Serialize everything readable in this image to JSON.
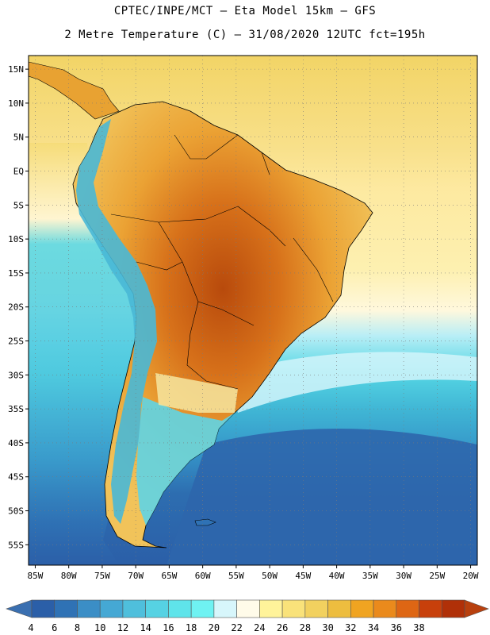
{
  "header": {
    "line1": "CPTEC/INPE/MCT –  Eta Model 15km – GFS",
    "line2": "2 Metre Temperature (C) – 31/08/2020 12UTC fct=195h"
  },
  "map": {
    "region": "South America",
    "variable": "2 Metre Temperature",
    "units": "C",
    "lon_range": [
      -86,
      -19
    ],
    "lat_range": [
      -58,
      17
    ],
    "lat_ticks": [
      {
        "value": 15,
        "label": "15N"
      },
      {
        "value": 10,
        "label": "10N"
      },
      {
        "value": 5,
        "label": "5N"
      },
      {
        "value": 0,
        "label": "EQ"
      },
      {
        "value": -5,
        "label": "5S"
      },
      {
        "value": -10,
        "label": "10S"
      },
      {
        "value": -15,
        "label": "15S"
      },
      {
        "value": -20,
        "label": "20S"
      },
      {
        "value": -25,
        "label": "25S"
      },
      {
        "value": -30,
        "label": "30S"
      },
      {
        "value": -35,
        "label": "35S"
      },
      {
        "value": -40,
        "label": "40S"
      },
      {
        "value": -45,
        "label": "45S"
      },
      {
        "value": -50,
        "label": "50S"
      },
      {
        "value": -55,
        "label": "55S"
      }
    ],
    "lon_ticks": [
      {
        "value": -85,
        "label": "85W"
      },
      {
        "value": -80,
        "label": "80W"
      },
      {
        "value": -75,
        "label": "75W"
      },
      {
        "value": -70,
        "label": "70W"
      },
      {
        "value": -65,
        "label": "65W"
      },
      {
        "value": -60,
        "label": "60W"
      },
      {
        "value": -55,
        "label": "55W"
      },
      {
        "value": -50,
        "label": "50W"
      },
      {
        "value": -45,
        "label": "45W"
      },
      {
        "value": -40,
        "label": "40W"
      },
      {
        "value": -35,
        "label": "35W"
      },
      {
        "value": -30,
        "label": "30W"
      },
      {
        "value": -25,
        "label": "25W"
      },
      {
        "value": -20,
        "label": "20W"
      }
    ]
  },
  "colorbar": {
    "labels": [
      "4",
      "6",
      "8",
      "10",
      "12",
      "14",
      "16",
      "18",
      "20",
      "22",
      "24",
      "26",
      "28",
      "30",
      "32",
      "34",
      "36",
      "38"
    ],
    "colors": [
      "#2b5fa8",
      "#2f72b5",
      "#3b8ec6",
      "#45a8d4",
      "#4fbfdc",
      "#56d2e3",
      "#5fe4ea",
      "#6ff2f2",
      "#d7f6fb",
      "#fffbe9",
      "#fff39a",
      "#f9e27a",
      "#f2d15f",
      "#edbd3f",
      "#f0a421",
      "#ea8a1c",
      "#de6614",
      "#c8400b",
      "#b03008"
    ],
    "under_color": "#3a6fb0",
    "over_color": "#b8400e"
  }
}
